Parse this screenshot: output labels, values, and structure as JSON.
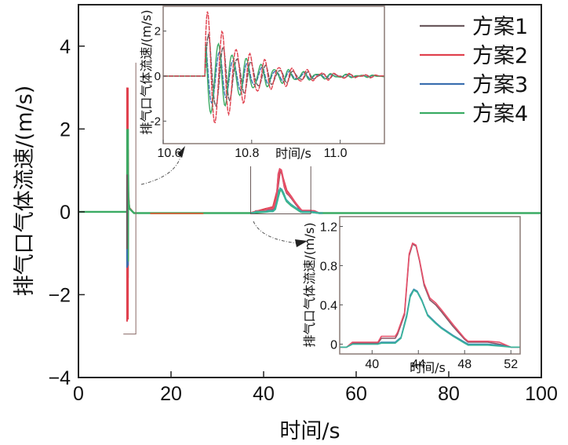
{
  "chart_data": [
    {
      "id": "main",
      "type": "line",
      "title": "",
      "xlabel": "时间/s",
      "ylabel": "排气口气体流速/(m/s)",
      "xlim": [
        0,
        100
      ],
      "ylim": [
        -4,
        5
      ],
      "xticks": [
        0,
        20,
        40,
        60,
        80,
        100
      ],
      "xtick_labels": [
        "0",
        "20",
        "40",
        "60",
        "80",
        "100"
      ],
      "yticks": [
        -4,
        -2,
        0,
        2,
        4
      ],
      "ytick_labels": [
        "−4",
        "−2",
        "0",
        "2",
        "4"
      ],
      "grid": false,
      "legend": {
        "placement": "top-right",
        "entries": [
          "方案1",
          "方案2",
          "方案3",
          "方案4"
        ]
      },
      "series": [
        {
          "name": "方案1",
          "color": "#6b5a5e",
          "x": [
            0,
            10.6,
            10.7,
            10.72,
            10.75,
            10.8,
            11,
            12,
            37,
            40.5,
            42,
            43,
            43.6,
            44,
            45,
            46,
            48,
            50,
            52,
            100
          ],
          "y": [
            0,
            0,
            1.8,
            -1.6,
            1.2,
            0.4,
            0.1,
            -0.03,
            -0.03,
            0.07,
            0.1,
            0.5,
            1.0,
            0.9,
            0.5,
            0.35,
            0.02,
            0.02,
            -0.03,
            -0.03
          ]
        },
        {
          "name": "方案2",
          "color": "#e0414e",
          "x": [
            0,
            10.6,
            10.7,
            10.72,
            10.75,
            10.8,
            11,
            12,
            37,
            40.5,
            42,
            43,
            43.6,
            44,
            45,
            46,
            48,
            50,
            52,
            100
          ],
          "y": [
            0,
            0,
            3.0,
            -2.6,
            1.5,
            0.5,
            0.1,
            -0.03,
            -0.03,
            0.08,
            0.12,
            0.55,
            1.03,
            0.9,
            0.52,
            0.37,
            0.03,
            0.03,
            -0.03,
            -0.03
          ]
        },
        {
          "name": "方案3",
          "color": "#3b6fb0",
          "x": [
            0,
            10.6,
            10.7,
            10.72,
            10.75,
            10.8,
            11,
            12,
            37,
            40.5,
            42,
            43,
            43.6,
            44,
            45,
            46,
            48,
            50,
            52,
            100
          ],
          "y": [
            0,
            0,
            1.6,
            -1.3,
            0.9,
            0.3,
            0.08,
            -0.03,
            -0.03,
            0.0,
            0.02,
            0.3,
            0.56,
            0.5,
            0.25,
            0.15,
            0.0,
            0.0,
            -0.03,
            -0.03
          ]
        },
        {
          "name": "方案4",
          "color": "#3aab63",
          "x": [
            0,
            10.6,
            10.7,
            10.72,
            10.75,
            10.8,
            11,
            12,
            37,
            40.5,
            42,
            43,
            43.6,
            44,
            45,
            46,
            48,
            50,
            52,
            100
          ],
          "y": [
            0,
            0,
            2.0,
            -1.2,
            0.9,
            0.3,
            0.08,
            -0.03,
            -0.03,
            0.0,
            0.02,
            0.3,
            0.55,
            0.5,
            0.25,
            0.15,
            0.0,
            0.0,
            -0.03,
            -0.03
          ]
        }
      ],
      "zoom_boxes": [
        {
          "target": "inset-1",
          "xlim": [
            9.7,
            12.4
          ],
          "ylim": [
            -2.95,
            3.6
          ]
        },
        {
          "target": "inset-2",
          "xlim": [
            37.2,
            50.2
          ],
          "ylim": [
            -0.05,
            1.1
          ]
        }
      ]
    },
    {
      "id": "inset-1",
      "type": "line",
      "xlabel": "时间/s",
      "ylabel": "排气口气体流速/(m/s)",
      "xlim": [
        10.6,
        11.1
      ],
      "ylim": [
        -3,
        3.1
      ],
      "xticks": [
        10.6,
        10.8,
        11.0
      ],
      "xtick_labels": [
        "10.6",
        "10.8",
        "11.0"
      ],
      "yticks": [
        -2,
        0,
        2
      ],
      "ytick_labels": [
        "-2",
        "0",
        "2"
      ],
      "series": [
        {
          "name": "方案1",
          "amp": 1.9,
          "phase": 0.0
        },
        {
          "name": "方案2",
          "amp": 2.9,
          "phase": 0.4
        },
        {
          "name": "方案3",
          "amp": 1.5,
          "phase": 1.7
        },
        {
          "name": "方案4",
          "amp": 2.0,
          "phase": 2.1
        }
      ],
      "onset": 10.695
    },
    {
      "id": "inset-2",
      "type": "line",
      "xlabel": "时间/s",
      "ylabel": "排气口气体流速/(m/s)",
      "xlim": [
        37.2,
        52.8
      ],
      "ylim": [
        -0.1,
        1.3
      ],
      "xticks": [
        40,
        44,
        48,
        52
      ],
      "xtick_labels": [
        "40",
        "44",
        "48",
        "52"
      ],
      "yticks": [
        0,
        0.4,
        0.8,
        1.2
      ],
      "ytick_labels": [
        "0",
        "0.4",
        "0.8",
        "1.2"
      ],
      "series": [
        {
          "name": "方案1",
          "x": [
            37.2,
            37.8,
            38.3,
            40.5,
            40.8,
            42.0,
            42.2,
            42.8,
            43.2,
            43.5,
            43.8,
            44.1,
            44.5,
            45.0,
            45.5,
            46.0,
            47.0,
            48.0,
            48.3,
            50.0,
            51.0,
            52.0,
            52.8
          ],
          "y": [
            -0.03,
            -0.03,
            0.01,
            0.01,
            0.06,
            0.06,
            0.1,
            0.3,
            0.9,
            1.02,
            1.0,
            0.85,
            0.6,
            0.45,
            0.4,
            0.33,
            0.18,
            0.05,
            0.02,
            0.02,
            0.0,
            -0.03,
            -0.03
          ]
        },
        {
          "name": "方案2",
          "x": [
            37.2,
            37.8,
            38.3,
            40.5,
            40.8,
            42.0,
            42.2,
            42.8,
            43.2,
            43.5,
            43.8,
            44.1,
            44.5,
            45.0,
            45.5,
            46.0,
            47.0,
            48.0,
            48.3,
            50.0,
            51.0,
            52.0,
            52.8
          ],
          "y": [
            -0.03,
            -0.03,
            0.02,
            0.02,
            0.08,
            0.08,
            0.12,
            0.32,
            0.92,
            1.03,
            1.01,
            0.86,
            0.62,
            0.47,
            0.42,
            0.35,
            0.2,
            0.06,
            0.03,
            0.03,
            0.02,
            -0.03,
            -0.03
          ]
        },
        {
          "name": "方案3",
          "x": [
            37.2,
            37.8,
            38.3,
            40.5,
            40.8,
            42.0,
            42.5,
            43.0,
            43.3,
            43.6,
            43.9,
            44.3,
            44.8,
            45.5,
            46.0,
            47.0,
            48.0,
            48.3,
            50.0,
            51.0,
            52.0,
            52.8
          ],
          "y": [
            -0.03,
            -0.03,
            0.0,
            0.0,
            0.02,
            0.02,
            0.07,
            0.3,
            0.5,
            0.56,
            0.54,
            0.45,
            0.3,
            0.22,
            0.17,
            0.09,
            0.02,
            0.0,
            0.0,
            -0.01,
            -0.03,
            -0.03
          ]
        },
        {
          "name": "方案4",
          "x": [
            37.2,
            37.8,
            38.3,
            40.5,
            40.8,
            42.0,
            42.5,
            43.0,
            43.3,
            43.6,
            43.9,
            44.3,
            44.8,
            45.5,
            46.0,
            47.0,
            48.0,
            48.3,
            50.0,
            51.0,
            52.0,
            52.8
          ],
          "y": [
            -0.03,
            -0.03,
            0.0,
            0.0,
            0.01,
            0.01,
            0.06,
            0.28,
            0.48,
            0.55,
            0.53,
            0.44,
            0.29,
            0.21,
            0.16,
            0.08,
            0.01,
            -0.01,
            -0.01,
            -0.02,
            -0.03,
            -0.03
          ]
        }
      ]
    }
  ]
}
